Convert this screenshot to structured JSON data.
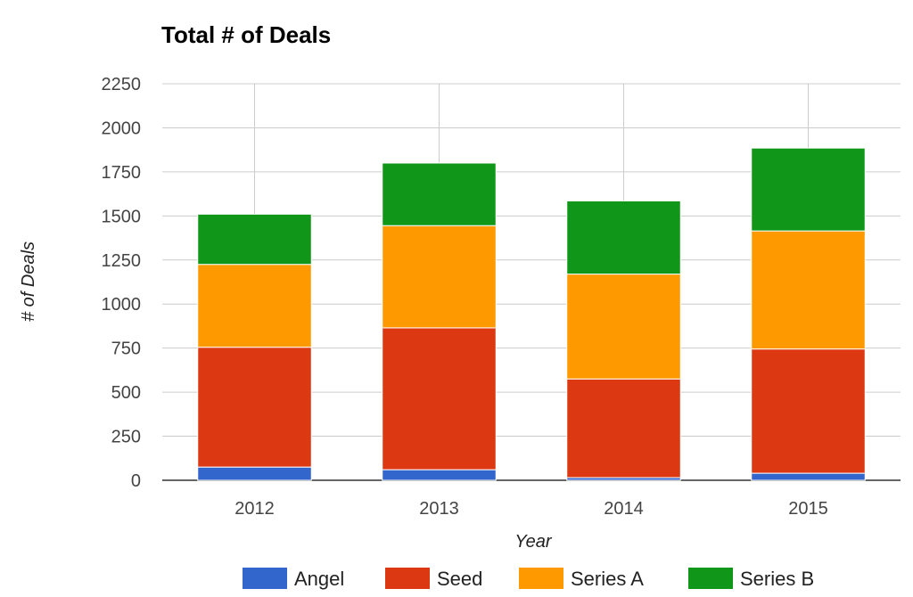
{
  "chart_data": {
    "type": "bar",
    "stacked": true,
    "title": "Total # of Deals",
    "xlabel": "Year",
    "ylabel": "# of Deals",
    "categories": [
      "2012",
      "2013",
      "2014",
      "2015"
    ],
    "ylim": [
      0,
      2250
    ],
    "yticks": [
      0,
      250,
      500,
      750,
      1000,
      1250,
      1500,
      1750,
      2000,
      2250
    ],
    "grid": true,
    "legend_position": "bottom",
    "series": [
      {
        "name": "Angel",
        "color": "#3366cc",
        "values": [
          75,
          60,
          15,
          40
        ]
      },
      {
        "name": "Seed",
        "color": "#dc3912",
        "values": [
          680,
          805,
          560,
          705
        ]
      },
      {
        "name": "Series A",
        "color": "#ff9900",
        "values": [
          470,
          580,
          595,
          670
        ]
      },
      {
        "name": "Series B",
        "color": "#109618",
        "values": [
          285,
          355,
          415,
          470
        ]
      }
    ]
  }
}
